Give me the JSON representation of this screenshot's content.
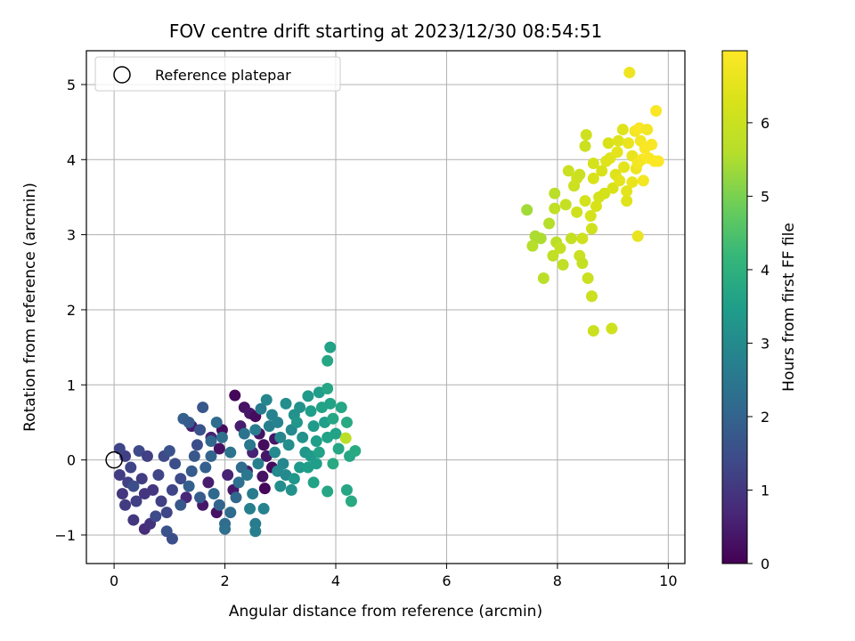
{
  "chart_data": {
    "type": "scatter",
    "title": "FOV centre drift starting at 2023/12/30 08:54:51",
    "xlabel": "Angular distance from reference (arcmin)",
    "ylabel": "Rotation from reference (arcmin)",
    "xlim": [
      -0.5,
      10.3
    ],
    "ylim": [
      -1.38,
      5.45
    ],
    "xticks": [
      0,
      2,
      4,
      6,
      8,
      10
    ],
    "xtick_labels": [
      "0",
      "2",
      "4",
      "6",
      "8",
      "10"
    ],
    "yticks": [
      -1,
      0,
      1,
      2,
      3,
      4,
      5
    ],
    "ytick_labels": [
      "−1",
      "0",
      "1",
      "2",
      "3",
      "4",
      "5"
    ],
    "grid": true,
    "legend": {
      "position": "upper-left",
      "entries": [
        "Reference platepar"
      ]
    },
    "reference_point": {
      "x": 0,
      "y": 0,
      "label": "Reference platepar"
    },
    "colorbar": {
      "label": "Hours from first FF file",
      "min": 0,
      "max": 6.98,
      "ticks": [
        0,
        1,
        2,
        3,
        4,
        5,
        6
      ],
      "tick_labels": [
        "0",
        "1",
        "2",
        "3",
        "4",
        "5",
        "6"
      ],
      "colormap": "viridis"
    },
    "points": [
      {
        "x": 2.18,
        "y": 0.86,
        "h": 0.1
      },
      {
        "x": 2.35,
        "y": 0.7,
        "h": 0.3
      },
      {
        "x": 2.45,
        "y": 0.62,
        "h": 0.4
      },
      {
        "x": 2.55,
        "y": 0.58,
        "h": 0.2
      },
      {
        "x": 2.28,
        "y": 0.45,
        "h": 0.5
      },
      {
        "x": 2.62,
        "y": 0.35,
        "h": 0.3
      },
      {
        "x": 2.7,
        "y": 0.2,
        "h": 0.2
      },
      {
        "x": 2.75,
        "y": 0.05,
        "h": 0.4
      },
      {
        "x": 2.85,
        "y": -0.1,
        "h": 0.2
      },
      {
        "x": 2.68,
        "y": -0.22,
        "h": 0.3
      },
      {
        "x": 2.72,
        "y": -0.38,
        "h": 0.1
      },
      {
        "x": 2.4,
        "y": -0.15,
        "h": 0.5
      },
      {
        "x": 2.15,
        "y": -0.4,
        "h": 0.4
      },
      {
        "x": 1.9,
        "y": 0.15,
        "h": 0.3
      },
      {
        "x": 1.75,
        "y": 0.3,
        "h": 0.6
      },
      {
        "x": 1.6,
        "y": -0.6,
        "h": 0.4
      },
      {
        "x": 1.85,
        "y": -0.7,
        "h": 0.3
      },
      {
        "x": 1.95,
        "y": 0.4,
        "h": 0.2
      },
      {
        "x": 2.05,
        "y": -0.2,
        "h": 0.6
      },
      {
        "x": 1.4,
        "y": 0.45,
        "h": 0.5
      },
      {
        "x": 1.3,
        "y": -0.5,
        "h": 0.7
      },
      {
        "x": 1.7,
        "y": -0.3,
        "h": 0.5
      },
      {
        "x": 2.5,
        "y": 0.1,
        "h": 0.6
      },
      {
        "x": 2.9,
        "y": 0.28,
        "h": 0.4
      },
      {
        "x": 0.55,
        "y": -0.92,
        "h": 0.8
      },
      {
        "x": 0.65,
        "y": -0.85,
        "h": 0.9
      },
      {
        "x": 0.35,
        "y": -0.8,
        "h": 1.0
      },
      {
        "x": 0.2,
        "y": -0.6,
        "h": 1.1
      },
      {
        "x": 0.15,
        "y": -0.45,
        "h": 1.0
      },
      {
        "x": 0.25,
        "y": -0.3,
        "h": 1.2
      },
      {
        "x": 0.1,
        "y": -0.2,
        "h": 1.1
      },
      {
        "x": 0.3,
        "y": -0.1,
        "h": 1.3
      },
      {
        "x": 0.2,
        "y": 0.05,
        "h": 1.2
      },
      {
        "x": 0.1,
        "y": 0.15,
        "h": 1.3
      },
      {
        "x": 0.45,
        "y": 0.12,
        "h": 1.4
      },
      {
        "x": 0.6,
        "y": 0.05,
        "h": 1.2
      },
      {
        "x": 0.5,
        "y": -0.25,
        "h": 1.1
      },
      {
        "x": 0.7,
        "y": -0.4,
        "h": 1.0
      },
      {
        "x": 0.85,
        "y": -0.55,
        "h": 1.2
      },
      {
        "x": 0.95,
        "y": -0.7,
        "h": 1.3
      },
      {
        "x": 0.75,
        "y": -0.75,
        "h": 1.4
      },
      {
        "x": 0.4,
        "y": -0.55,
        "h": 1.2
      },
      {
        "x": 0.55,
        "y": -0.45,
        "h": 1.0
      },
      {
        "x": 0.35,
        "y": -0.35,
        "h": 1.5
      },
      {
        "x": 0.8,
        "y": -0.2,
        "h": 1.3
      },
      {
        "x": 0.9,
        "y": 0.05,
        "h": 1.4
      },
      {
        "x": 1.0,
        "y": 0.12,
        "h": 1.6
      },
      {
        "x": 1.1,
        "y": -0.05,
        "h": 1.5
      },
      {
        "x": 1.2,
        "y": -0.25,
        "h": 1.4
      },
      {
        "x": 1.05,
        "y": -0.4,
        "h": 1.3
      },
      {
        "x": 0.95,
        "y": -0.95,
        "h": 1.6
      },
      {
        "x": 1.05,
        "y": -1.05,
        "h": 1.5
      },
      {
        "x": 1.2,
        "y": -0.6,
        "h": 1.7
      },
      {
        "x": 1.25,
        "y": 0.55,
        "h": 1.9
      },
      {
        "x": 1.35,
        "y": 0.5,
        "h": 1.8
      },
      {
        "x": 1.6,
        "y": 0.7,
        "h": 1.7
      },
      {
        "x": 1.55,
        "y": 0.4,
        "h": 1.6
      },
      {
        "x": 1.5,
        "y": 0.2,
        "h": 1.5
      },
      {
        "x": 1.45,
        "y": 0.05,
        "h": 1.7
      },
      {
        "x": 1.4,
        "y": -0.15,
        "h": 1.8
      },
      {
        "x": 1.35,
        "y": -0.35,
        "h": 1.9
      },
      {
        "x": 1.55,
        "y": -0.5,
        "h": 1.8
      },
      {
        "x": 1.65,
        "y": -0.1,
        "h": 1.9
      },
      {
        "x": 1.75,
        "y": 0.05,
        "h": 2.0
      },
      {
        "x": 1.8,
        "y": -0.45,
        "h": 2.1
      },
      {
        "x": 1.9,
        "y": -0.6,
        "h": 2.0
      },
      {
        "x": 2.0,
        "y": -0.85,
        "h": 2.2
      },
      {
        "x": 2.0,
        "y": -0.92,
        "h": 2.3
      },
      {
        "x": 2.1,
        "y": -0.7,
        "h": 2.2
      },
      {
        "x": 2.2,
        "y": -0.5,
        "h": 2.1
      },
      {
        "x": 2.25,
        "y": -0.3,
        "h": 2.3
      },
      {
        "x": 2.3,
        "y": -0.1,
        "h": 2.2
      },
      {
        "x": 2.1,
        "y": 0.1,
        "h": 2.4
      },
      {
        "x": 1.95,
        "y": 0.3,
        "h": 2.3
      },
      {
        "x": 1.85,
        "y": 0.5,
        "h": 2.2
      },
      {
        "x": 1.75,
        "y": 0.25,
        "h": 2.1
      },
      {
        "x": 2.35,
        "y": 0.35,
        "h": 2.4
      },
      {
        "x": 2.45,
        "y": 0.2,
        "h": 2.5
      },
      {
        "x": 2.55,
        "y": 0.4,
        "h": 2.6
      },
      {
        "x": 2.4,
        "y": -0.2,
        "h": 2.5
      },
      {
        "x": 2.5,
        "y": -0.45,
        "h": 2.6
      },
      {
        "x": 2.45,
        "y": -0.65,
        "h": 2.7
      },
      {
        "x": 2.55,
        "y": -0.85,
        "h": 2.6
      },
      {
        "x": 2.55,
        "y": -0.95,
        "h": 2.7
      },
      {
        "x": 2.7,
        "y": -0.65,
        "h": 2.8
      },
      {
        "x": 2.6,
        "y": -0.05,
        "h": 2.7
      },
      {
        "x": 2.65,
        "y": 0.68,
        "h": 2.6
      },
      {
        "x": 2.85,
        "y": 0.6,
        "h": 2.8
      },
      {
        "x": 2.75,
        "y": 0.8,
        "h": 2.9
      },
      {
        "x": 2.8,
        "y": 0.45,
        "h": 2.7
      },
      {
        "x": 2.95,
        "y": 0.5,
        "h": 2.8
      },
      {
        "x": 3.0,
        "y": 0.3,
        "h": 2.9
      },
      {
        "x": 2.9,
        "y": 0.1,
        "h": 3.0
      },
      {
        "x": 3.05,
        "y": -0.05,
        "h": 2.9
      },
      {
        "x": 3.1,
        "y": -0.2,
        "h": 3.0
      },
      {
        "x": 3.0,
        "y": -0.35,
        "h": 3.1
      },
      {
        "x": 2.95,
        "y": -0.15,
        "h": 3.0
      },
      {
        "x": 3.15,
        "y": 0.2,
        "h": 3.1
      },
      {
        "x": 3.2,
        "y": 0.4,
        "h": 3.0
      },
      {
        "x": 3.25,
        "y": 0.6,
        "h": 3.2
      },
      {
        "x": 3.1,
        "y": 0.75,
        "h": 3.1
      },
      {
        "x": 3.35,
        "y": 0.7,
        "h": 3.2
      },
      {
        "x": 3.3,
        "y": 0.5,
        "h": 3.3
      },
      {
        "x": 3.4,
        "y": 0.3,
        "h": 3.2
      },
      {
        "x": 3.45,
        "y": 0.1,
        "h": 3.3
      },
      {
        "x": 3.35,
        "y": -0.1,
        "h": 3.4
      },
      {
        "x": 3.25,
        "y": -0.25,
        "h": 3.3
      },
      {
        "x": 3.2,
        "y": -0.4,
        "h": 3.2
      },
      {
        "x": 3.5,
        "y": 0.85,
        "h": 3.4
      },
      {
        "x": 3.55,
        "y": 0.65,
        "h": 3.5
      },
      {
        "x": 3.6,
        "y": 0.45,
        "h": 3.4
      },
      {
        "x": 3.65,
        "y": 0.25,
        "h": 3.5
      },
      {
        "x": 3.55,
        "y": 0.05,
        "h": 3.4
      },
      {
        "x": 3.5,
        "y": -0.1,
        "h": 3.5
      },
      {
        "x": 3.7,
        "y": 0.9,
        "h": 3.5
      },
      {
        "x": 3.75,
        "y": 0.7,
        "h": 3.6
      },
      {
        "x": 3.8,
        "y": 0.5,
        "h": 3.5
      },
      {
        "x": 3.85,
        "y": 0.3,
        "h": 3.6
      },
      {
        "x": 3.7,
        "y": 0.1,
        "h": 3.6
      },
      {
        "x": 3.65,
        "y": -0.05,
        "h": 3.5
      },
      {
        "x": 3.85,
        "y": 0.95,
        "h": 3.7
      },
      {
        "x": 3.9,
        "y": 0.75,
        "h": 3.6
      },
      {
        "x": 3.95,
        "y": 0.55,
        "h": 3.7
      },
      {
        "x": 4.0,
        "y": 0.35,
        "h": 3.6
      },
      {
        "x": 4.05,
        "y": 0.15,
        "h": 3.7
      },
      {
        "x": 3.95,
        "y": -0.05,
        "h": 3.8
      },
      {
        "x": 3.85,
        "y": 1.32,
        "h": 3.7
      },
      {
        "x": 3.9,
        "y": 1.5,
        "h": 3.6
      },
      {
        "x": 4.1,
        "y": 0.7,
        "h": 3.7
      },
      {
        "x": 4.2,
        "y": 0.5,
        "h": 3.8
      },
      {
        "x": 4.25,
        "y": 0.05,
        "h": 3.7
      },
      {
        "x": 4.35,
        "y": 0.12,
        "h": 3.8
      },
      {
        "x": 4.2,
        "y": -0.4,
        "h": 3.7
      },
      {
        "x": 4.28,
        "y": -0.55,
        "h": 3.8
      },
      {
        "x": 3.85,
        "y": -0.42,
        "h": 3.7
      },
      {
        "x": 3.6,
        "y": -0.3,
        "h": 3.6
      },
      {
        "x": 4.18,
        "y": 0.29,
        "h": 5.7
      },
      {
        "x": 7.45,
        "y": 3.33,
        "h": 5.4
      },
      {
        "x": 7.6,
        "y": 2.98,
        "h": 5.5
      },
      {
        "x": 7.55,
        "y": 2.85,
        "h": 5.6
      },
      {
        "x": 7.7,
        "y": 2.95,
        "h": 5.5
      },
      {
        "x": 7.75,
        "y": 2.42,
        "h": 5.7
      },
      {
        "x": 7.85,
        "y": 3.15,
        "h": 5.6
      },
      {
        "x": 7.95,
        "y": 3.55,
        "h": 5.7
      },
      {
        "x": 7.95,
        "y": 3.35,
        "h": 5.8
      },
      {
        "x": 7.98,
        "y": 2.9,
        "h": 5.7
      },
      {
        "x": 7.92,
        "y": 2.72,
        "h": 5.8
      },
      {
        "x": 8.05,
        "y": 2.82,
        "h": 5.9
      },
      {
        "x": 8.1,
        "y": 2.6,
        "h": 5.8
      },
      {
        "x": 8.15,
        "y": 3.4,
        "h": 5.9
      },
      {
        "x": 8.2,
        "y": 3.85,
        "h": 6.0
      },
      {
        "x": 8.25,
        "y": 2.95,
        "h": 5.9
      },
      {
        "x": 8.3,
        "y": 3.65,
        "h": 6.0
      },
      {
        "x": 8.35,
        "y": 3.75,
        "h": 6.1
      },
      {
        "x": 8.4,
        "y": 3.8,
        "h": 6.0
      },
      {
        "x": 8.35,
        "y": 3.3,
        "h": 6.1
      },
      {
        "x": 8.4,
        "y": 2.72,
        "h": 6.0
      },
      {
        "x": 8.45,
        "y": 2.62,
        "h": 5.9
      },
      {
        "x": 8.45,
        "y": 2.95,
        "h": 6.1
      },
      {
        "x": 8.5,
        "y": 3.45,
        "h": 6.2
      },
      {
        "x": 8.5,
        "y": 4.18,
        "h": 6.0
      },
      {
        "x": 8.52,
        "y": 4.33,
        "h": 6.1
      },
      {
        "x": 8.55,
        "y": 2.42,
        "h": 6.0
      },
      {
        "x": 8.6,
        "y": 3.25,
        "h": 6.2
      },
      {
        "x": 8.62,
        "y": 3.08,
        "h": 6.1
      },
      {
        "x": 8.62,
        "y": 2.18,
        "h": 6.0
      },
      {
        "x": 8.65,
        "y": 3.75,
        "h": 6.3
      },
      {
        "x": 8.65,
        "y": 3.95,
        "h": 6.2
      },
      {
        "x": 8.7,
        "y": 3.38,
        "h": 6.3
      },
      {
        "x": 8.65,
        "y": 1.72,
        "h": 6.0
      },
      {
        "x": 8.75,
        "y": 3.5,
        "h": 6.2
      },
      {
        "x": 8.8,
        "y": 3.85,
        "h": 6.3
      },
      {
        "x": 8.85,
        "y": 3.55,
        "h": 6.2
      },
      {
        "x": 8.88,
        "y": 3.98,
        "h": 6.4
      },
      {
        "x": 8.92,
        "y": 4.22,
        "h": 6.3
      },
      {
        "x": 8.95,
        "y": 4.02,
        "h": 6.4
      },
      {
        "x": 8.98,
        "y": 1.75,
        "h": 6.1
      },
      {
        "x": 9.0,
        "y": 3.62,
        "h": 6.3
      },
      {
        "x": 9.05,
        "y": 3.8,
        "h": 6.4
      },
      {
        "x": 9.08,
        "y": 4.1,
        "h": 6.5
      },
      {
        "x": 9.1,
        "y": 4.25,
        "h": 6.4
      },
      {
        "x": 9.12,
        "y": 3.72,
        "h": 6.5
      },
      {
        "x": 9.18,
        "y": 4.4,
        "h": 6.4
      },
      {
        "x": 9.2,
        "y": 3.9,
        "h": 6.5
      },
      {
        "x": 9.25,
        "y": 3.45,
        "h": 6.4
      },
      {
        "x": 9.25,
        "y": 3.58,
        "h": 6.5
      },
      {
        "x": 9.28,
        "y": 4.22,
        "h": 6.6
      },
      {
        "x": 9.3,
        "y": 5.16,
        "h": 6.7
      },
      {
        "x": 9.35,
        "y": 4.05,
        "h": 6.6
      },
      {
        "x": 9.4,
        "y": 4.38,
        "h": 6.8
      },
      {
        "x": 9.42,
        "y": 3.88,
        "h": 6.7
      },
      {
        "x": 9.45,
        "y": 2.98,
        "h": 6.6
      },
      {
        "x": 9.48,
        "y": 4.42,
        "h": 6.9
      },
      {
        "x": 9.5,
        "y": 4.25,
        "h": 6.8
      },
      {
        "x": 9.52,
        "y": 4.0,
        "h": 6.9
      },
      {
        "x": 9.55,
        "y": 3.72,
        "h": 6.8
      },
      {
        "x": 9.58,
        "y": 4.15,
        "h": 6.9
      },
      {
        "x": 9.62,
        "y": 4.4,
        "h": 6.8
      },
      {
        "x": 9.65,
        "y": 4.02,
        "h": 6.9
      },
      {
        "x": 9.7,
        "y": 4.2,
        "h": 6.9
      },
      {
        "x": 9.75,
        "y": 3.98,
        "h": 6.95
      },
      {
        "x": 9.78,
        "y": 4.65,
        "h": 6.9
      },
      {
        "x": 9.82,
        "y": 3.98,
        "h": 6.95
      },
      {
        "x": 9.45,
        "y": 3.95,
        "h": 6.8
      },
      {
        "x": 9.35,
        "y": 3.7,
        "h": 6.6
      }
    ]
  }
}
